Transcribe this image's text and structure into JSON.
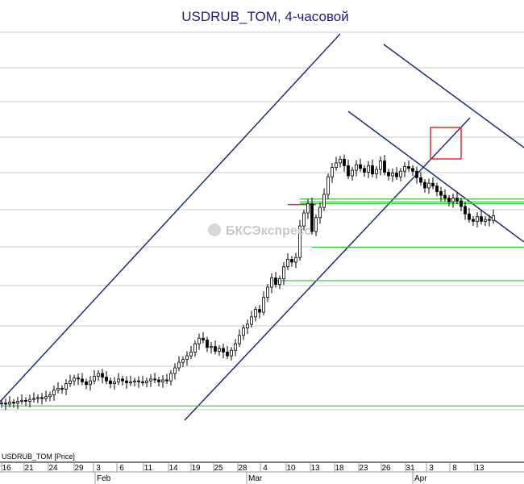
{
  "chart_data": {
    "type": "candlestick",
    "title": "USDRUB_TOM, 4-часовой",
    "series_label": "USDRUB_TOM [Price]",
    "watermark": "БКСЭкспресс",
    "day_ticks": [
      "16",
      "21",
      "24",
      "29",
      "3",
      "6",
      "11",
      "14",
      "19",
      "25",
      "28",
      "4",
      "10",
      "13",
      "18",
      "23",
      "26",
      "31",
      "3",
      "8",
      "13"
    ],
    "month_labels": [
      "Feb",
      "Mar",
      "Apr"
    ],
    "grid": true,
    "colors": {
      "title": "#1c1c8c",
      "candles": "#000000",
      "trend_channel": "#1c2f7a",
      "support_resistance": "#2ecc2e",
      "highlight_box": "#e03030",
      "magenta_level": "#c0307a"
    },
    "candles_close": [
      47.5,
      47.4,
      47.6,
      47.5,
      47.7,
      47.8,
      47.7,
      47.9,
      48.0,
      48.1,
      48.0,
      48.2,
      48.4,
      48.9,
      49.1,
      49.0,
      49.6,
      49.9,
      50.2,
      50.1,
      49.8,
      49.5,
      49.9,
      50.4,
      50.7,
      50.3,
      49.9,
      49.6,
      49.8,
      50.1,
      49.9,
      49.7,
      49.8,
      49.9,
      49.8,
      49.7,
      49.9,
      50.1,
      50.0,
      49.8,
      50.0,
      49.9,
      50.7,
      51.3,
      51.9,
      52.2,
      52.6,
      53.0,
      53.9,
      54.5,
      54.3,
      53.5,
      53.6,
      53.1,
      53.4,
      53.0,
      52.6,
      53.2,
      53.9,
      54.8,
      55.6,
      56.0,
      56.8,
      57.6,
      57.3,
      58.9,
      60.0,
      61.0,
      60.3,
      60.9,
      62.2,
      63.0,
      62.7,
      63.2,
      66.6,
      68.0,
      69.0,
      66.0,
      67.5,
      68.6,
      70.0,
      71.9,
      72.9,
      73.4,
      73.8,
      73.1,
      72.0,
      72.6,
      73.2,
      72.8,
      72.4,
      73.1,
      72.2,
      72.7,
      73.6,
      72.4,
      72.0,
      72.3,
      71.9,
      72.5,
      73.0,
      72.8,
      72.5,
      71.8,
      71.3,
      70.7,
      71.2,
      70.9,
      70.3,
      69.9,
      69.6,
      69.2,
      69.6,
      69.3,
      68.7,
      67.9,
      67.3,
      67.1,
      67.6,
      67.1,
      67.3,
      67.2,
      67.7
    ],
    "levels": [
      {
        "name": "resistance-1",
        "y": 69.5,
        "x_from_index": 74
      },
      {
        "name": "resistance-2",
        "y": 69.2,
        "x_from_index": 74
      },
      {
        "name": "resistance-3",
        "y": 69.0,
        "x_from_index": 74
      },
      {
        "name": "support-1",
        "y": 64.3,
        "x_from_index": 77
      },
      {
        "name": "support-2",
        "y": 60.7,
        "x_from_index": 67
      },
      {
        "name": "support-3",
        "y": 47.2,
        "x_from_index": 0
      }
    ],
    "magenta_level": {
      "y": 68.9,
      "from_index": 71,
      "to_index": 78
    }
  }
}
